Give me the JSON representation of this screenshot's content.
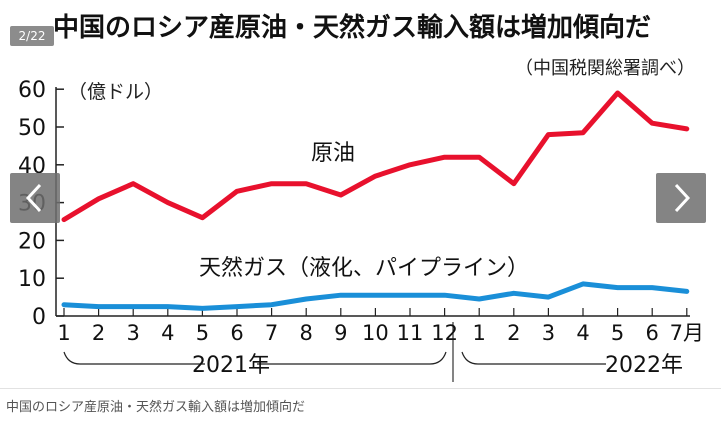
{
  "counter": "2/22",
  "caption": "中国のロシア産原油・天然ガス輸入額は増加傾向だ",
  "colors": {
    "oil": "#e8112d",
    "gas": "#1a8fd8",
    "axis": "#222222",
    "nav_bg": "#6e6e6e"
  },
  "icons": {
    "prev": "chevron-left-icon",
    "next": "chevron-right-icon"
  },
  "chart_data": {
    "type": "line",
    "title": "中国のロシア産原油・天然ガス輸入額は増加傾向だ",
    "source": "（中国税関総署調べ）",
    "ylabel": "（億ドル）",
    "ylim": [
      0,
      60
    ],
    "yticks": [
      "0",
      "10",
      "20",
      "30",
      "40",
      "50",
      "60"
    ],
    "categories": [
      "1",
      "2",
      "3",
      "4",
      "5",
      "6",
      "7",
      "8",
      "9",
      "10",
      "11",
      "12",
      "1",
      "2",
      "3",
      "4",
      "5",
      "6",
      "7月"
    ],
    "year_labels": [
      "2021年",
      "2022年"
    ],
    "grid": false,
    "series": [
      {
        "name": "原油",
        "values": [
          25.5,
          31,
          35,
          30,
          26,
          33,
          35,
          35,
          32,
          37,
          40,
          42,
          42,
          35,
          48,
          48.5,
          59,
          51,
          49.5
        ]
      },
      {
        "name": "天然ガス（液化、パイプライン）",
        "values": [
          3,
          2.5,
          2.5,
          2.5,
          2,
          2.5,
          3,
          4.5,
          5.5,
          5.5,
          5.5,
          5.5,
          4.5,
          6,
          5,
          8.5,
          7.5,
          7.5,
          6.5
        ]
      }
    ]
  }
}
